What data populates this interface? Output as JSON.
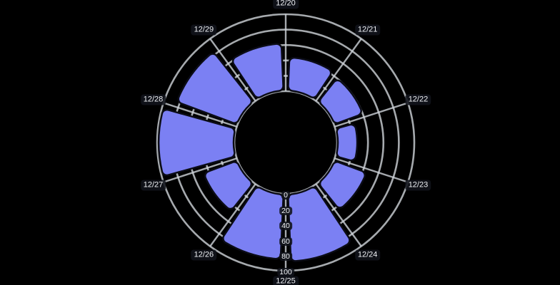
{
  "chart_data": {
    "type": "bar",
    "subtype": "polar-rose",
    "title": "",
    "categories": [
      "12/20",
      "12/21",
      "12/22",
      "12/23",
      "12/24",
      "12/25",
      "12/26",
      "12/27",
      "12/28",
      "12/29"
    ],
    "values": [
      44,
      40,
      26,
      45,
      88,
      85,
      47,
      98,
      84,
      62
    ],
    "radial_ticks": [
      "0",
      "20",
      "40",
      "60",
      "80",
      "100"
    ],
    "radial_tick_values": [
      0,
      20,
      40,
      60,
      80,
      100
    ],
    "radial_range": [
      0,
      100
    ],
    "start_angle_deg": 90,
    "direction": "clockwise",
    "sector_span_deg": 36,
    "grid": "on",
    "legend": "none",
    "colors": {
      "background": "#000000",
      "bar_fill": "#7b80f3",
      "bar_border": "#0b0c16",
      "grid_line": "#cfd4da",
      "label_text": "#eef0f4",
      "label_pill": "rgba(17,19,27,0.88)"
    }
  }
}
